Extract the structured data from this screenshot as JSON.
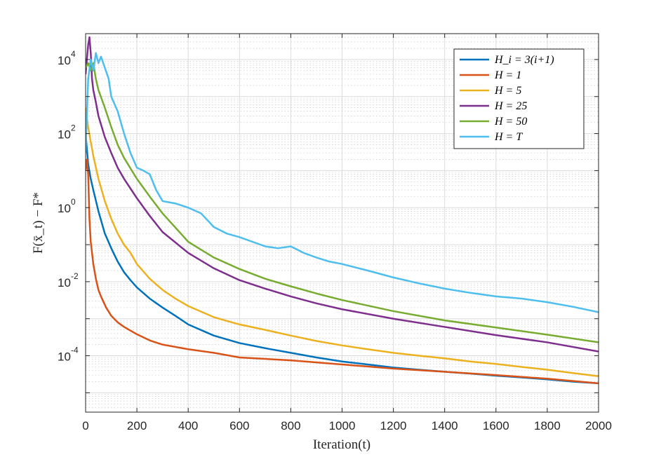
{
  "chart_data": {
    "type": "line",
    "xlabel": "Iteration(t)",
    "ylabel": "F(x̄_t) − F*",
    "xlim": [
      0,
      2000
    ],
    "ylim": [
      3e-06,
      50000
    ],
    "yscale": "log",
    "grid": true,
    "minor_grid": true,
    "legend_position": "top-right",
    "x_ticks": [
      "0",
      "200",
      "400",
      "600",
      "800",
      "1000",
      "1200",
      "1400",
      "1600",
      "1800",
      "2000"
    ],
    "y_ticks": [
      {
        "base": "10",
        "exp": "-4"
      },
      {
        "base": "10",
        "exp": "-2"
      },
      {
        "base": "10",
        "exp": "0"
      },
      {
        "base": "10",
        "exp": "2"
      },
      {
        "base": "10",
        "exp": "4"
      }
    ],
    "series": [
      {
        "name": "H_i = 3(i+1)",
        "color": "#0072BD",
        "x": [
          0,
          10,
          20,
          30,
          50,
          75,
          100,
          125,
          150,
          175,
          200,
          250,
          300,
          350,
          400,
          500,
          600,
          700,
          800,
          900,
          1000,
          1100,
          1200,
          1300,
          1400,
          1500,
          1600,
          1700,
          1800,
          1900,
          2000
        ],
        "y": [
          100,
          15,
          6,
          3,
          0.8,
          0.2,
          0.08,
          0.035,
          0.018,
          0.011,
          0.007,
          0.0035,
          0.002,
          0.0012,
          0.0007,
          0.00035,
          0.00022,
          0.00016,
          0.00012,
          9e-05,
          7e-05,
          5.8e-05,
          4.8e-05,
          4.2e-05,
          3.7e-05,
          3.3e-05,
          2.9e-05,
          2.6e-05,
          2.3e-05,
          2e-05,
          1.8e-05
        ]
      },
      {
        "name": "H = 1",
        "color": "#D95319",
        "x": [
          0,
          5,
          10,
          15,
          20,
          30,
          40,
          50,
          60,
          80,
          100,
          125,
          150,
          200,
          250,
          300,
          400,
          500,
          600,
          800,
          1000,
          1200,
          1400,
          1600,
          1800,
          2000
        ],
        "y": [
          10,
          20,
          8,
          0.5,
          0.12,
          0.03,
          0.012,
          0.006,
          0.004,
          0.002,
          0.0012,
          0.0008,
          0.0006,
          0.00038,
          0.00026,
          0.0002,
          0.00015,
          0.00012,
          9e-05,
          7.5e-05,
          5.8e-05,
          4.5e-05,
          3.7e-05,
          3e-05,
          2.4e-05,
          1.8e-05
        ]
      },
      {
        "name": "H = 5",
        "color": "#EDB120",
        "x": [
          0,
          10,
          20,
          30,
          50,
          75,
          100,
          125,
          150,
          175,
          200,
          250,
          300,
          350,
          400,
          500,
          600,
          700,
          800,
          900,
          1000,
          1100,
          1200,
          1300,
          1400,
          1500,
          1600,
          1700,
          1800,
          1900,
          2000
        ],
        "y": [
          500,
          150,
          60,
          25,
          6,
          1.5,
          0.5,
          0.2,
          0.1,
          0.06,
          0.03,
          0.012,
          0.006,
          0.0035,
          0.0022,
          0.0011,
          0.0007,
          0.0005,
          0.00035,
          0.00025,
          0.00019,
          0.00015,
          0.00012,
          0.0001,
          8.5e-05,
          7e-05,
          6e-05,
          5e-05,
          4.2e-05,
          3.4e-05,
          2.8e-05
        ]
      },
      {
        "name": "H = 25",
        "color": "#7E2F8E",
        "x": [
          0,
          5,
          10,
          15,
          20,
          25,
          30,
          40,
          50,
          75,
          100,
          125,
          150,
          200,
          250,
          300,
          400,
          500,
          600,
          700,
          800,
          900,
          1000,
          1200,
          1400,
          1600,
          1800,
          2000
        ],
        "y": [
          4000,
          10000,
          25000,
          40000,
          15000,
          3000,
          1500,
          700,
          300,
          80,
          30,
          12,
          6,
          1.8,
          0.6,
          0.22,
          0.06,
          0.023,
          0.011,
          0.0065,
          0.004,
          0.0026,
          0.0018,
          0.001,
          0.0006,
          0.00036,
          0.00023,
          0.00013
        ]
      },
      {
        "name": "H = 50",
        "color": "#77AC30",
        "x": [
          0,
          10,
          20,
          30,
          40,
          50,
          75,
          100,
          125,
          150,
          200,
          250,
          300,
          400,
          500,
          600,
          700,
          800,
          900,
          1000,
          1200,
          1400,
          1600,
          1800,
          2000
        ],
        "y": [
          6000,
          8000,
          5000,
          8000,
          3000,
          1500,
          500,
          150,
          50,
          22,
          6,
          2,
          0.7,
          0.12,
          0.045,
          0.022,
          0.012,
          0.0075,
          0.0048,
          0.0032,
          0.0016,
          0.0009,
          0.00058,
          0.00037,
          0.00023
        ]
      },
      {
        "name": "H = T",
        "color": "#4DBEEE",
        "x": [
          0,
          10,
          20,
          30,
          40,
          50,
          60,
          75,
          90,
          100,
          125,
          150,
          175,
          200,
          225,
          250,
          275,
          300,
          350,
          400,
          450,
          500,
          550,
          600,
          650,
          700,
          750,
          800,
          850,
          900,
          950,
          1000,
          1100,
          1200,
          1300,
          1400,
          1500,
          1600,
          1700,
          1800,
          1900,
          2000
        ],
        "y": [
          30,
          3000,
          10000,
          5000,
          15000,
          8000,
          12000,
          6000,
          3000,
          1000,
          400,
          100,
          30,
          12,
          10,
          8,
          3,
          1.5,
          1.3,
          1,
          0.7,
          0.3,
          0.2,
          0.16,
          0.12,
          0.09,
          0.08,
          0.09,
          0.06,
          0.045,
          0.035,
          0.03,
          0.02,
          0.013,
          0.009,
          0.0065,
          0.005,
          0.004,
          0.0035,
          0.0028,
          0.0021,
          0.0015
        ]
      }
    ]
  }
}
